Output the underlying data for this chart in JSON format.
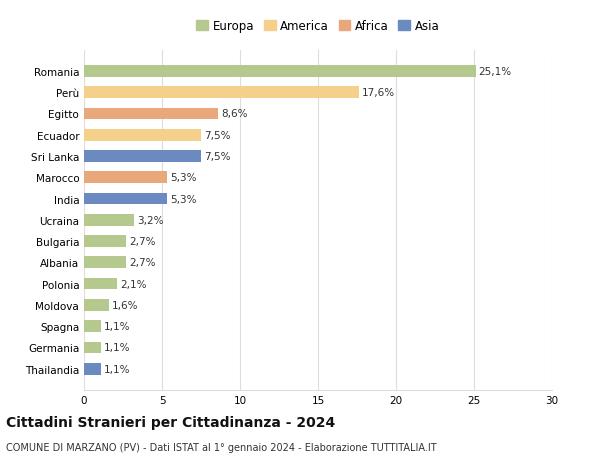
{
  "countries": [
    "Romania",
    "Perù",
    "Egitto",
    "Ecuador",
    "Sri Lanka",
    "Marocco",
    "India",
    "Ucraina",
    "Bulgaria",
    "Albania",
    "Polonia",
    "Moldova",
    "Spagna",
    "Germania",
    "Thailandia"
  ],
  "values": [
    25.1,
    17.6,
    8.6,
    7.5,
    7.5,
    5.3,
    5.3,
    3.2,
    2.7,
    2.7,
    2.1,
    1.6,
    1.1,
    1.1,
    1.1
  ],
  "labels": [
    "25,1%",
    "17,6%",
    "8,6%",
    "7,5%",
    "7,5%",
    "5,3%",
    "5,3%",
    "3,2%",
    "2,7%",
    "2,7%",
    "2,1%",
    "1,6%",
    "1,1%",
    "1,1%",
    "1,1%"
  ],
  "continents": [
    "Europa",
    "America",
    "Africa",
    "America",
    "Asia",
    "Africa",
    "Asia",
    "Europa",
    "Europa",
    "Europa",
    "Europa",
    "Europa",
    "Europa",
    "Europa",
    "Asia"
  ],
  "colors": {
    "Europa": "#b5c98e",
    "America": "#f5d08a",
    "Africa": "#e8a87c",
    "Asia": "#6b8abf"
  },
  "xlim": [
    0,
    30
  ],
  "xticks": [
    0,
    5,
    10,
    15,
    20,
    25,
    30
  ],
  "title": "Cittadini Stranieri per Cittadinanza - 2024",
  "subtitle": "COMUNE DI MARZANO (PV) - Dati ISTAT al 1° gennaio 2024 - Elaborazione TUTTITALIA.IT",
  "background_color": "#ffffff",
  "grid_color": "#dddddd",
  "bar_height": 0.55,
  "label_fontsize": 7.5,
  "ytick_fontsize": 7.5,
  "xtick_fontsize": 7.5,
  "title_fontsize": 10,
  "subtitle_fontsize": 7,
  "legend_fontsize": 8.5
}
